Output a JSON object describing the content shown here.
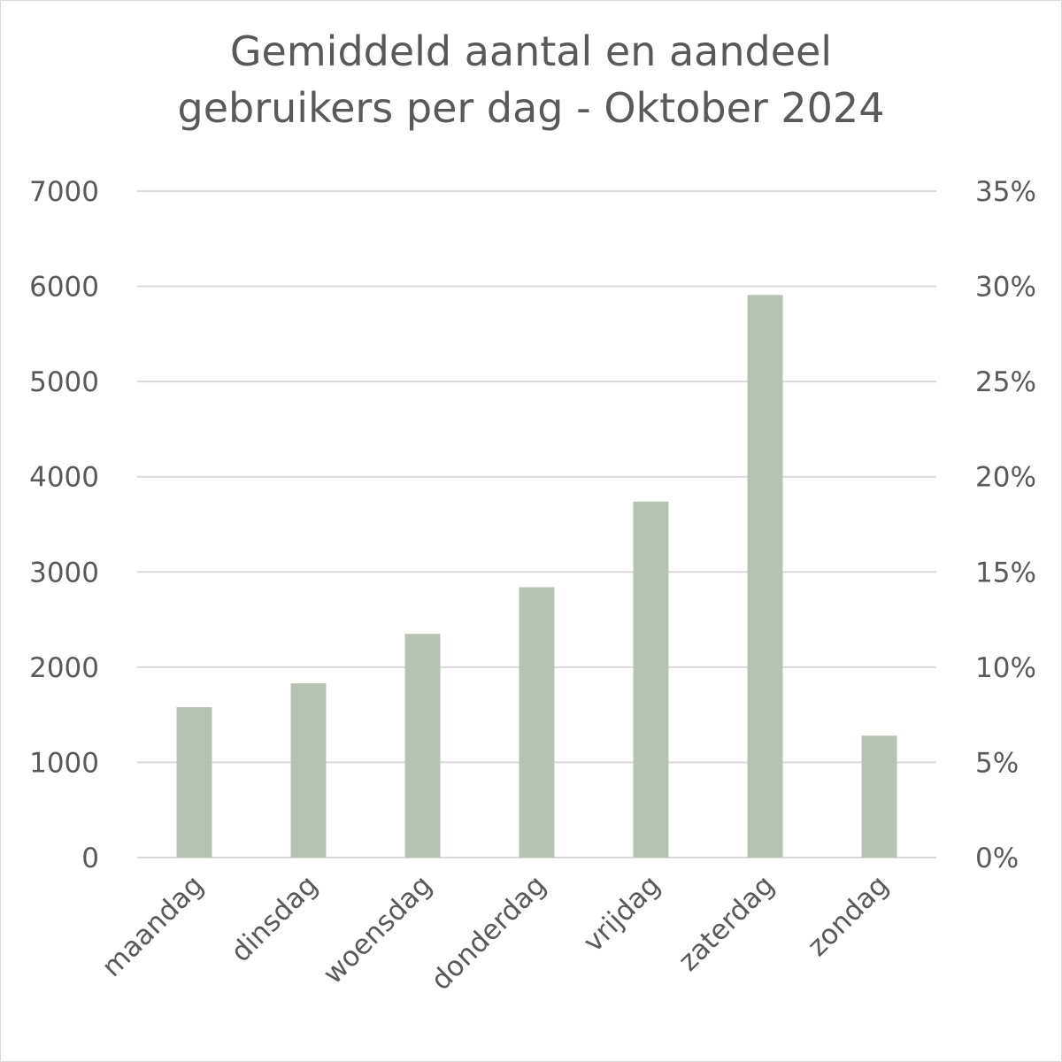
{
  "chart_data": {
    "type": "bar",
    "title_lines": [
      "Gemiddeld aantal en aandeel",
      "gebruikers per dag - Oktober 2024"
    ],
    "categories": [
      "maandag",
      "dinsdag",
      "woensdag",
      "donderdag",
      "vrijdag",
      "zaterdag",
      "zondag"
    ],
    "values": [
      1580,
      1830,
      2350,
      2840,
      3740,
      5910,
      1280
    ],
    "ylim": [
      0,
      7000
    ],
    "y_ticks": [
      "0",
      "1000",
      "2000",
      "3000",
      "4000",
      "5000",
      "6000",
      "7000"
    ],
    "y2lim": [
      0,
      35
    ],
    "y2_ticks": [
      "0%",
      "5%",
      "10%",
      "15%",
      "20%",
      "25%",
      "30%",
      "35%"
    ],
    "grid": true,
    "legend": "none",
    "bar_color": "#b5c4b1",
    "grid_color": "#d9d9d9",
    "text_color": "#595959"
  }
}
